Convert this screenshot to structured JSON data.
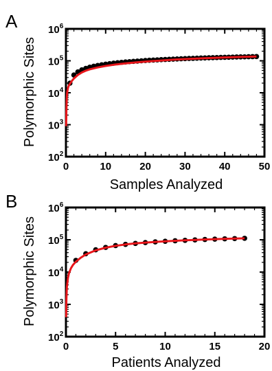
{
  "chart_data": [
    {
      "panel": "A",
      "type": "scatter",
      "ylabel": "Polymorphic Sites",
      "xlabel": "Samples Analyzed",
      "xlim": [
        0,
        50
      ],
      "ylim": [
        100,
        1000000
      ],
      "yscale": "log",
      "xticks": [
        "0",
        "10",
        "20",
        "30",
        "40",
        "50"
      ],
      "yticks": [
        {
          "base": "10",
          "exp": "2"
        },
        {
          "base": "10",
          "exp": "3"
        },
        {
          "base": "10",
          "exp": "4"
        },
        {
          "base": "10",
          "exp": "5"
        },
        {
          "base": "10",
          "exp": "6"
        }
      ],
      "grid": false,
      "series": [
        {
          "kind": "points",
          "color": "#000000",
          "x": [
            1,
            2,
            3,
            4,
            5,
            6,
            7,
            8,
            9,
            10,
            11,
            12,
            13,
            14,
            15,
            16,
            17,
            18,
            19,
            20,
            21,
            22,
            23,
            24,
            25,
            26,
            27,
            28,
            29,
            30,
            31,
            32,
            33,
            34,
            35,
            36,
            37,
            38,
            39,
            40,
            41,
            42,
            43,
            44,
            45,
            46,
            47,
            48
          ],
          "y": [
            20000,
            36000,
            45000,
            52000,
            58000,
            63000,
            67500,
            71500,
            75000,
            78500,
            81500,
            84500,
            87000,
            89500,
            92000,
            94000,
            96000,
            98000,
            100000,
            102000,
            104000,
            105500,
            107000,
            108500,
            110000,
            111500,
            113000,
            114500,
            116000,
            117000,
            118500,
            119500,
            121000,
            122000,
            123000,
            124500,
            125500,
            126500,
            127500,
            128500,
            129500,
            130500,
            131500,
            132500,
            133000,
            134000,
            135000,
            136000
          ]
        },
        {
          "kind": "line",
          "color": "#e8161b",
          "x": [
            0.05,
            0.1,
            0.2,
            0.3,
            0.5,
            0.7,
            1,
            1.5,
            2,
            3,
            4,
            5,
            6,
            8,
            10,
            12,
            15,
            18,
            21,
            24,
            27,
            30,
            33,
            36,
            40,
            44,
            48
          ],
          "y": [
            900,
            2500,
            6500,
            10000,
            14000,
            16500,
            19000,
            23500,
            28000,
            36000,
            43000,
            49000,
            54000,
            62000,
            69000,
            75000,
            83000,
            90000,
            96000,
            102000,
            108000,
            113000,
            118000,
            122000,
            127500,
            132000,
            136000
          ]
        }
      ]
    },
    {
      "panel": "B",
      "type": "scatter",
      "ylabel": "Polymorphic Sites",
      "xlabel": "Patients Analyzed",
      "xlim": [
        0,
        20
      ],
      "ylim": [
        100,
        1000000
      ],
      "yscale": "log",
      "xticks": [
        "0",
        "5",
        "10",
        "15",
        "20"
      ],
      "yticks": [
        {
          "base": "10",
          "exp": "2"
        },
        {
          "base": "10",
          "exp": "3"
        },
        {
          "base": "10",
          "exp": "4"
        },
        {
          "base": "10",
          "exp": "5"
        },
        {
          "base": "10",
          "exp": "6"
        }
      ],
      "grid": false,
      "series": [
        {
          "kind": "points",
          "color": "#000000",
          "x": [
            1,
            2,
            3,
            4,
            5,
            6,
            7,
            8,
            9,
            10,
            11,
            12,
            13,
            14,
            15,
            16,
            17,
            18
          ],
          "y": [
            23000,
            37000,
            49000,
            58000,
            66000,
            72000,
            77000,
            82000,
            86000,
            90000,
            93000,
            96000,
            99000,
            102000,
            104500,
            107000,
            109000,
            111000
          ]
        },
        {
          "kind": "line",
          "color": "#e8161b",
          "x": [
            0.02,
            0.05,
            0.1,
            0.2,
            0.3,
            0.5,
            0.7,
            1,
            1.5,
            2,
            3,
            4,
            5,
            6,
            7,
            8,
            9,
            10,
            11,
            12,
            13,
            14,
            15,
            16,
            17,
            18
          ],
          "y": [
            400,
            1500,
            3500,
            6500,
            9000,
            13000,
            16500,
            21000,
            28000,
            35000,
            47000,
            57000,
            65000,
            71500,
            77000,
            82000,
            86000,
            90000,
            93000,
            96000,
            99000,
            102000,
            104500,
            107000,
            109000,
            111000
          ]
        }
      ]
    }
  ]
}
